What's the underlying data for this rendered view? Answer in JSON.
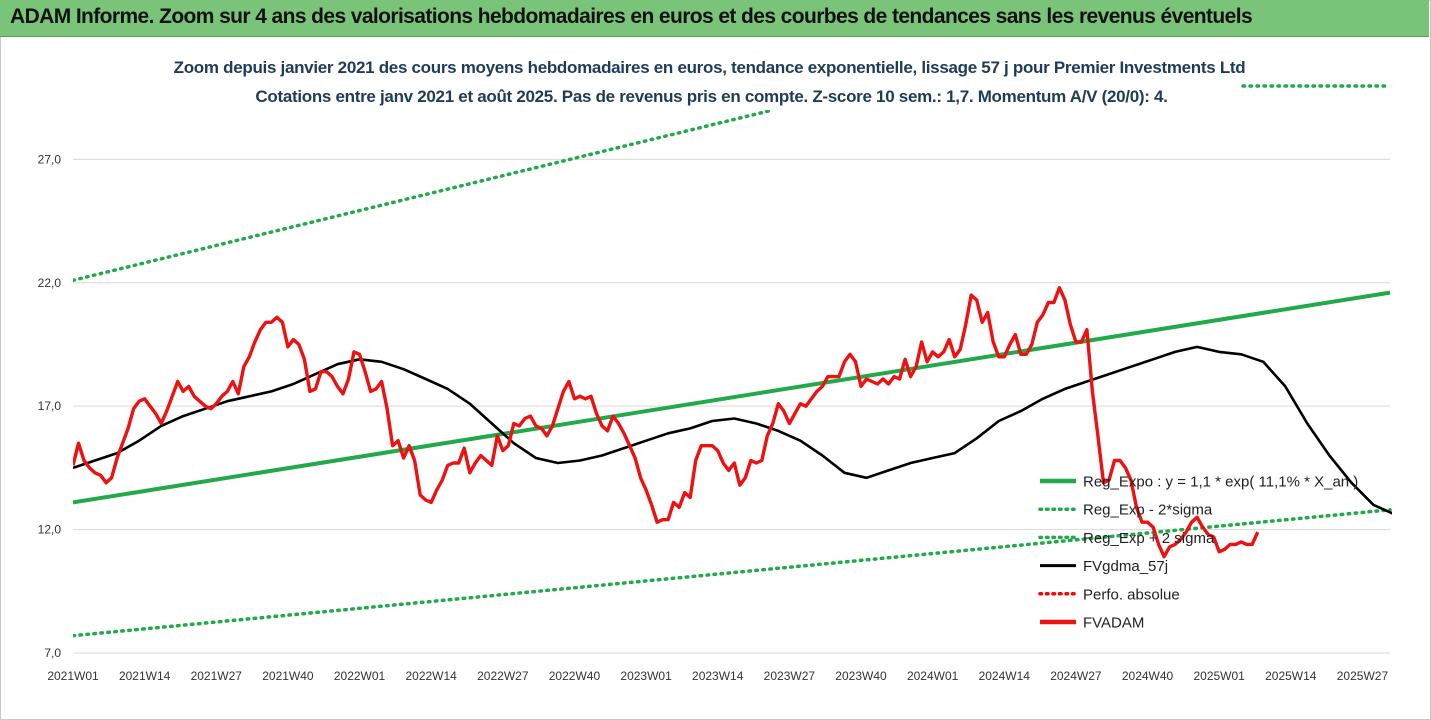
{
  "header": {
    "title": "ADAM Informe. Zoom sur 4 ans des valorisations hebdomadaires en euros et des courbes de tendances sans les revenus éventuels"
  },
  "chart_data": {
    "type": "line",
    "title": "Zoom depuis janvier 2021 des cours moyens hebdomadaires en euros, tendance exponentielle, lissage 57 j pour Premier Investments Ltd",
    "subtitle": "Cotations entre janv 2021 et août 2025.  Pas de revenus pris en compte. Z-score 10 sem.: 1,7. Momentum A/V (20/0): 4.",
    "xlabel": "",
    "ylabel": "",
    "ylim": [
      7,
      29
    ],
    "y_ticks": [
      "7,0",
      "12,0",
      "17,0",
      "22,0",
      "27,0"
    ],
    "y_tick_values": [
      7,
      12,
      17,
      22,
      27
    ],
    "grid": "horizontal",
    "x_ticks": [
      "2021W01",
      "2021W14",
      "2021W27",
      "2021W40",
      "2022W01",
      "2022W14",
      "2022W27",
      "2022W40",
      "2023W01",
      "2023W14",
      "2023W27",
      "2023W40",
      "2024W01",
      "2024W14",
      "2024W27",
      "2024W40",
      "2025W01",
      "2025W14",
      "2025W27"
    ],
    "legend_position": "bottom-right",
    "series": [
      {
        "name": "Reg_Expo : y = 1,1 * exp( 11,1% *  X_an )",
        "color": "#22aa4a",
        "style": "solid",
        "points": [
          [
            0,
            13.1
          ],
          [
            239,
            21.6
          ]
        ]
      },
      {
        "name": "Reg_Exp - 2*sigma",
        "color": "#22aa4a",
        "style": "dotted",
        "points": [
          [
            0,
            7.7
          ],
          [
            239,
            12.8
          ]
        ]
      },
      {
        "name": "Reg_Exp + 2 sigma",
        "color": "#22aa4a",
        "style": "dotted",
        "points": [
          [
            0,
            22.1
          ],
          [
            127,
            29.0
          ]
        ]
      },
      {
        "name": "FVgdma_57j",
        "color": "#000000",
        "style": "solid",
        "points": [
          [
            0,
            14.5
          ],
          [
            4,
            14.8
          ],
          [
            8,
            15.1
          ],
          [
            12,
            15.6
          ],
          [
            16,
            16.2
          ],
          [
            20,
            16.6
          ],
          [
            24,
            16.9
          ],
          [
            28,
            17.2
          ],
          [
            32,
            17.4
          ],
          [
            36,
            17.6
          ],
          [
            40,
            17.9
          ],
          [
            44,
            18.3
          ],
          [
            48,
            18.7
          ],
          [
            52,
            18.9
          ],
          [
            56,
            18.8
          ],
          [
            60,
            18.5
          ],
          [
            64,
            18.1
          ],
          [
            68,
            17.7
          ],
          [
            72,
            17.1
          ],
          [
            76,
            16.3
          ],
          [
            80,
            15.5
          ],
          [
            84,
            14.9
          ],
          [
            88,
            14.7
          ],
          [
            92,
            14.8
          ],
          [
            96,
            15.0
          ],
          [
            100,
            15.3
          ],
          [
            104,
            15.6
          ],
          [
            108,
            15.9
          ],
          [
            112,
            16.1
          ],
          [
            116,
            16.4
          ],
          [
            120,
            16.5
          ],
          [
            124,
            16.3
          ],
          [
            128,
            16.0
          ],
          [
            132,
            15.6
          ],
          [
            136,
            15.0
          ],
          [
            140,
            14.3
          ],
          [
            144,
            14.1
          ],
          [
            148,
            14.4
          ],
          [
            152,
            14.7
          ],
          [
            156,
            14.9
          ],
          [
            160,
            15.1
          ],
          [
            164,
            15.7
          ],
          [
            168,
            16.4
          ],
          [
            172,
            16.8
          ],
          [
            176,
            17.3
          ],
          [
            180,
            17.7
          ],
          [
            184,
            18.0
          ],
          [
            188,
            18.3
          ],
          [
            192,
            18.6
          ],
          [
            196,
            18.9
          ],
          [
            200,
            19.2
          ],
          [
            204,
            19.4
          ],
          [
            208,
            19.2
          ],
          [
            212,
            19.1
          ],
          [
            216,
            18.8
          ],
          [
            220,
            17.8
          ],
          [
            224,
            16.3
          ],
          [
            228,
            15.0
          ],
          [
            232,
            13.9
          ],
          [
            236,
            13.0
          ],
          [
            240,
            12.6
          ],
          [
            244,
            12.3
          ],
          [
            248,
            12.1
          ],
          [
            252,
            11.9
          ],
          [
            256,
            11.9
          ]
        ]
      },
      {
        "name": "Perfo. absolue",
        "color": "#ff0000",
        "style": "dotted",
        "points": []
      },
      {
        "name": "FVADAM",
        "color": "#ee1111",
        "style": "solid",
        "points": [
          [
            0,
            14.6
          ],
          [
            1,
            15.5
          ],
          [
            2,
            14.8
          ],
          [
            3,
            14.5
          ],
          [
            4,
            14.3
          ],
          [
            5,
            14.2
          ],
          [
            6,
            13.9
          ],
          [
            7,
            14.1
          ],
          [
            8,
            14.9
          ],
          [
            9,
            15.5
          ],
          [
            10,
            16.1
          ],
          [
            11,
            16.9
          ],
          [
            12,
            17.2
          ],
          [
            13,
            17.3
          ],
          [
            14,
            17.0
          ],
          [
            15,
            16.7
          ],
          [
            16,
            16.3
          ],
          [
            17,
            16.8
          ],
          [
            18,
            17.4
          ],
          [
            19,
            18.0
          ],
          [
            20,
            17.6
          ],
          [
            21,
            17.8
          ],
          [
            22,
            17.4
          ],
          [
            23,
            17.2
          ],
          [
            24,
            17.0
          ],
          [
            25,
            16.9
          ],
          [
            26,
            17.1
          ],
          [
            27,
            17.4
          ],
          [
            28,
            17.6
          ],
          [
            29,
            18.0
          ],
          [
            30,
            17.5
          ],
          [
            31,
            18.6
          ],
          [
            32,
            19.0
          ],
          [
            33,
            19.6
          ],
          [
            34,
            20.1
          ],
          [
            35,
            20.4
          ],
          [
            36,
            20.4
          ],
          [
            37,
            20.6
          ],
          [
            38,
            20.4
          ],
          [
            39,
            19.4
          ],
          [
            40,
            19.7
          ],
          [
            41,
            19.5
          ],
          [
            42,
            18.9
          ],
          [
            43,
            17.6
          ],
          [
            44,
            17.7
          ],
          [
            45,
            18.4
          ],
          [
            46,
            18.4
          ],
          [
            47,
            18.2
          ],
          [
            48,
            17.8
          ],
          [
            49,
            17.5
          ],
          [
            50,
            18.1
          ],
          [
            51,
            19.2
          ],
          [
            52,
            19.1
          ],
          [
            53,
            18.4
          ],
          [
            54,
            17.6
          ],
          [
            55,
            17.7
          ],
          [
            56,
            18.0
          ],
          [
            57,
            16.9
          ],
          [
            58,
            15.4
          ],
          [
            59,
            15.6
          ],
          [
            60,
            14.9
          ],
          [
            61,
            15.4
          ],
          [
            62,
            14.8
          ],
          [
            63,
            13.4
          ],
          [
            64,
            13.2
          ],
          [
            65,
            13.1
          ],
          [
            66,
            13.6
          ],
          [
            67,
            14.0
          ],
          [
            68,
            14.6
          ],
          [
            69,
            14.7
          ],
          [
            70,
            14.7
          ],
          [
            71,
            15.3
          ],
          [
            72,
            14.3
          ],
          [
            73,
            14.7
          ],
          [
            74,
            15.0
          ],
          [
            75,
            14.8
          ],
          [
            76,
            14.6
          ],
          [
            77,
            15.8
          ],
          [
            78,
            15.2
          ],
          [
            79,
            15.4
          ],
          [
            80,
            16.3
          ],
          [
            81,
            16.2
          ],
          [
            82,
            16.5
          ],
          [
            83,
            16.6
          ],
          [
            84,
            16.2
          ],
          [
            85,
            16.1
          ],
          [
            86,
            15.8
          ],
          [
            87,
            16.2
          ],
          [
            88,
            16.9
          ],
          [
            89,
            17.6
          ],
          [
            90,
            18.0
          ],
          [
            91,
            17.3
          ],
          [
            92,
            17.4
          ],
          [
            93,
            17.3
          ],
          [
            94,
            17.4
          ],
          [
            95,
            16.7
          ],
          [
            96,
            16.2
          ],
          [
            97,
            16.0
          ],
          [
            98,
            16.6
          ],
          [
            99,
            16.3
          ],
          [
            100,
            15.9
          ],
          [
            101,
            15.4
          ],
          [
            102,
            14.9
          ],
          [
            103,
            14.1
          ],
          [
            104,
            13.6
          ],
          [
            105,
            13.0
          ],
          [
            106,
            12.3
          ],
          [
            107,
            12.4
          ],
          [
            108,
            12.4
          ],
          [
            109,
            13.1
          ],
          [
            110,
            12.9
          ],
          [
            111,
            13.5
          ],
          [
            112,
            13.3
          ],
          [
            113,
            14.8
          ],
          [
            114,
            15.4
          ],
          [
            115,
            15.4
          ],
          [
            116,
            15.4
          ],
          [
            117,
            15.2
          ],
          [
            118,
            14.7
          ],
          [
            119,
            14.4
          ],
          [
            120,
            14.7
          ],
          [
            121,
            13.8
          ],
          [
            122,
            14.1
          ],
          [
            123,
            14.8
          ],
          [
            124,
            14.7
          ],
          [
            125,
            14.8
          ],
          [
            126,
            15.8
          ],
          [
            127,
            16.3
          ],
          [
            128,
            17.1
          ],
          [
            129,
            16.8
          ],
          [
            130,
            16.3
          ],
          [
            131,
            16.7
          ],
          [
            132,
            17.1
          ],
          [
            133,
            17.0
          ],
          [
            134,
            17.3
          ],
          [
            135,
            17.6
          ],
          [
            136,
            17.8
          ],
          [
            137,
            18.2
          ],
          [
            138,
            18.2
          ],
          [
            139,
            18.2
          ],
          [
            140,
            18.8
          ],
          [
            141,
            19.1
          ],
          [
            142,
            18.8
          ],
          [
            143,
            17.8
          ],
          [
            144,
            18.1
          ],
          [
            145,
            18.0
          ],
          [
            146,
            17.9
          ],
          [
            147,
            18.1
          ],
          [
            148,
            17.9
          ],
          [
            149,
            18.2
          ],
          [
            150,
            18.1
          ],
          [
            151,
            18.9
          ],
          [
            152,
            18.2
          ],
          [
            153,
            18.6
          ],
          [
            154,
            19.6
          ],
          [
            155,
            18.8
          ],
          [
            156,
            19.2
          ],
          [
            157,
            19.0
          ],
          [
            158,
            19.2
          ],
          [
            159,
            19.7
          ],
          [
            160,
            19.0
          ],
          [
            161,
            19.3
          ],
          [
            162,
            20.3
          ],
          [
            163,
            21.5
          ],
          [
            164,
            21.3
          ],
          [
            165,
            20.4
          ],
          [
            166,
            20.8
          ],
          [
            167,
            19.6
          ],
          [
            168,
            19.0
          ],
          [
            169,
            19.0
          ],
          [
            170,
            19.5
          ],
          [
            171,
            19.9
          ],
          [
            172,
            19.1
          ],
          [
            173,
            19.1
          ],
          [
            174,
            19.5
          ],
          [
            175,
            20.4
          ],
          [
            176,
            20.7
          ],
          [
            177,
            21.2
          ],
          [
            178,
            21.2
          ],
          [
            179,
            21.8
          ],
          [
            180,
            21.3
          ],
          [
            181,
            20.3
          ],
          [
            182,
            19.6
          ],
          [
            183,
            19.6
          ],
          [
            184,
            20.1
          ],
          [
            185,
            17.6
          ],
          [
            186,
            15.8
          ],
          [
            187,
            13.9
          ],
          [
            188,
            14.0
          ],
          [
            189,
            14.8
          ],
          [
            190,
            14.8
          ],
          [
            191,
            14.5
          ],
          [
            192,
            14.0
          ],
          [
            193,
            12.9
          ],
          [
            194,
            12.3
          ],
          [
            195,
            12.3
          ],
          [
            196,
            12.1
          ],
          [
            197,
            11.4
          ],
          [
            198,
            10.9
          ],
          [
            199,
            11.3
          ],
          [
            200,
            11.4
          ],
          [
            201,
            11.6
          ],
          [
            202,
            11.9
          ],
          [
            203,
            12.3
          ],
          [
            204,
            12.5
          ],
          [
            205,
            12.1
          ],
          [
            206,
            11.8
          ],
          [
            207,
            11.7
          ],
          [
            208,
            11.1
          ],
          [
            209,
            11.2
          ],
          [
            210,
            11.4
          ],
          [
            211,
            11.4
          ],
          [
            212,
            11.5
          ],
          [
            213,
            11.4
          ],
          [
            214,
            11.4
          ],
          [
            215,
            11.9
          ]
        ]
      }
    ]
  }
}
